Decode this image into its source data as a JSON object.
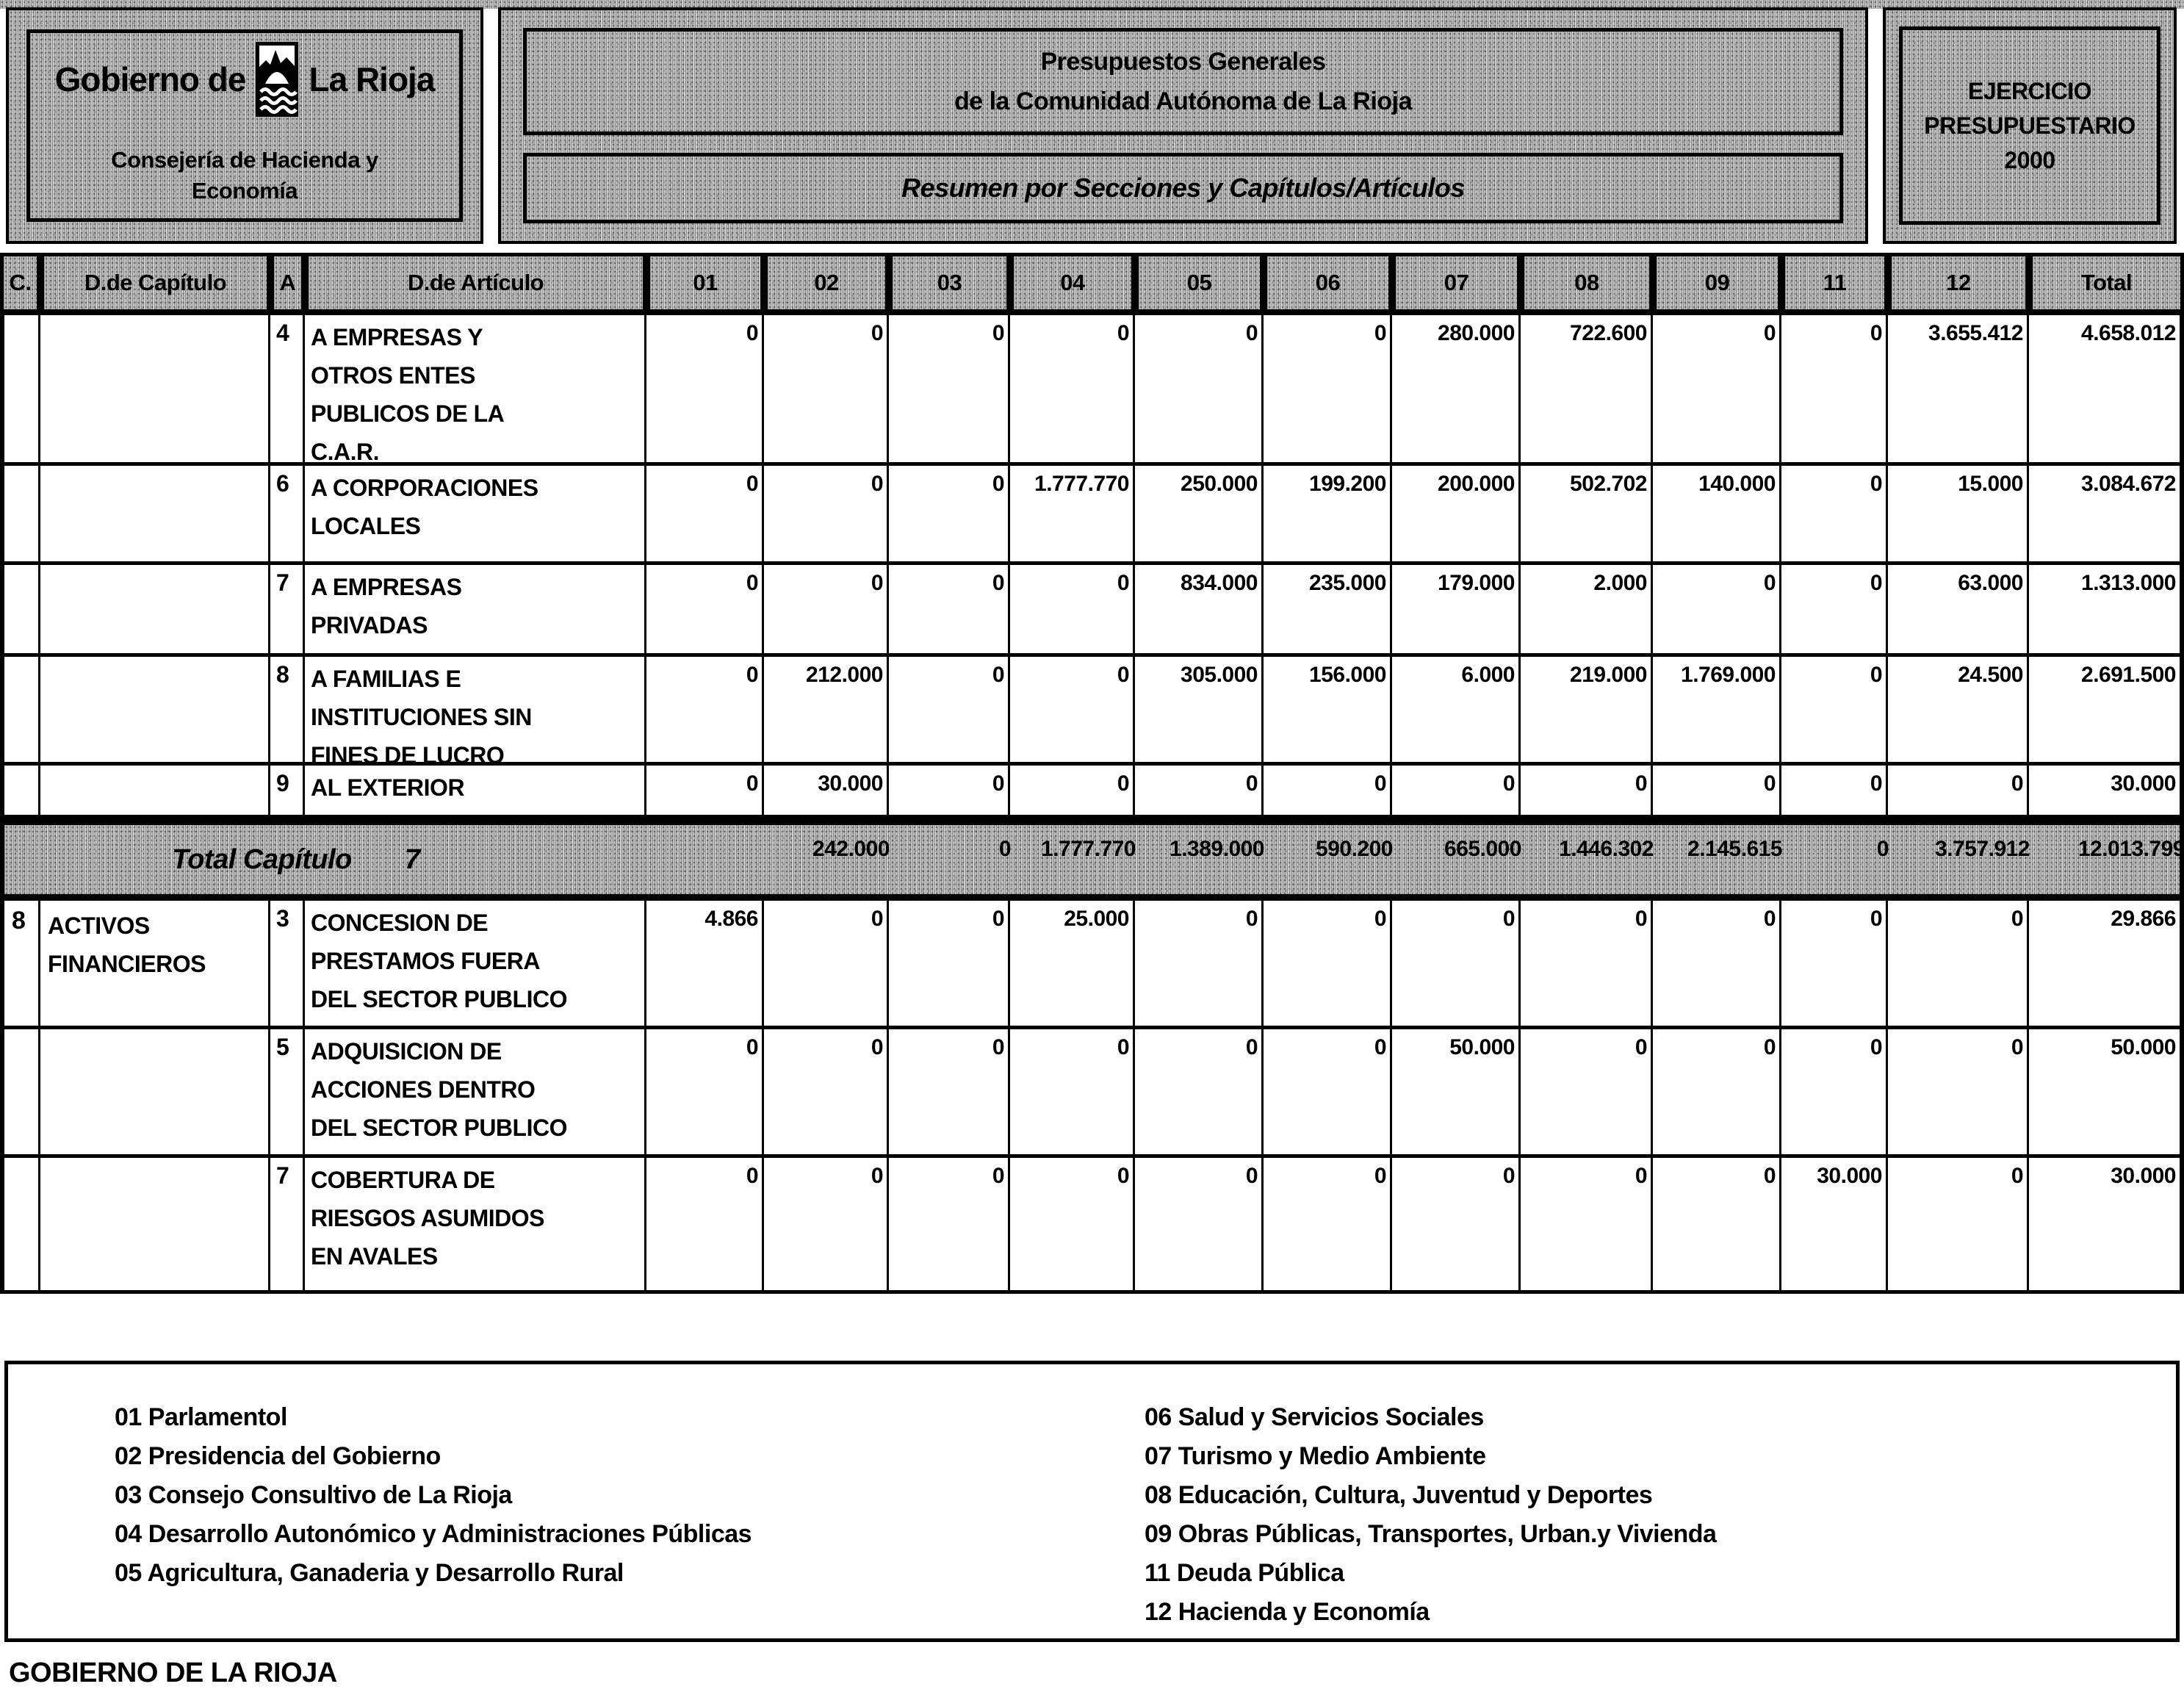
{
  "colors": {
    "ink": "#000000",
    "paper": "#ffffff",
    "halftone_gray": "#bfbfbf"
  },
  "header": {
    "left": {
      "line1_prefix": "Gobierno de",
      "line1_suffix": "La Rioja",
      "line2": "Consejería de Hacienda y",
      "line3": "Economía"
    },
    "center": {
      "title_line1": "Presupuestos Generales",
      "title_line2": "de la Comunidad Autónoma de La Rioja",
      "subtitle": "Resumen por Secciones y Capítulos/Artículos"
    },
    "right": {
      "line1": "EJERCICIO",
      "line2": "PRESUPUESTARIO",
      "line3": "2000"
    }
  },
  "table": {
    "columns": [
      "C.",
      "D.de Capítulo",
      "A",
      "D.de Artículo",
      "01",
      "02",
      "03",
      "04",
      "05",
      "06",
      "07",
      "08",
      "09",
      "11",
      "12",
      "Total"
    ],
    "rows": [
      {
        "c": "",
        "capitulo": "",
        "a": "4",
        "articulo": "A EMPRESAS Y\nOTROS ENTES\nPUBLICOS DE LA\nC.A.R.",
        "values": [
          "0",
          "0",
          "0",
          "0",
          "0",
          "0",
          "280.000",
          "722.600",
          "0",
          "0",
          "3.655.412"
        ],
        "total": "4.658.012"
      },
      {
        "c": "",
        "capitulo": "",
        "a": "6",
        "articulo": "A CORPORACIONES\nLOCALES",
        "values": [
          "0",
          "0",
          "0",
          "1.777.770",
          "250.000",
          "199.200",
          "200.000",
          "502.702",
          "140.000",
          "0",
          "15.000"
        ],
        "total": "3.084.672"
      },
      {
        "c": "",
        "capitulo": "",
        "a": "7",
        "articulo": "A EMPRESAS\nPRIVADAS",
        "values": [
          "0",
          "0",
          "0",
          "0",
          "834.000",
          "235.000",
          "179.000",
          "2.000",
          "0",
          "0",
          "63.000"
        ],
        "total": "1.313.000"
      },
      {
        "c": "",
        "capitulo": "",
        "a": "8",
        "articulo": "A FAMILIAS E\nINSTITUCIONES SIN\nFINES DE LUCRO",
        "values": [
          "0",
          "212.000",
          "0",
          "0",
          "305.000",
          "156.000",
          "6.000",
          "219.000",
          "1.769.000",
          "0",
          "24.500"
        ],
        "total": "2.691.500"
      },
      {
        "c": "",
        "capitulo": "",
        "a": "9",
        "articulo": "AL EXTERIOR",
        "values": [
          "0",
          "30.000",
          "0",
          "0",
          "0",
          "0",
          "0",
          "0",
          "0",
          "0",
          "0"
        ],
        "total": "30.000"
      },
      {
        "c": "8",
        "capitulo": "ACTIVOS\nFINANCIEROS",
        "a": "3",
        "articulo": "CONCESION DE\nPRESTAMOS FUERA\nDEL SECTOR PUBLICO",
        "values": [
          "4.866",
          "0",
          "0",
          "25.000",
          "0",
          "0",
          "0",
          "0",
          "0",
          "0",
          "0"
        ],
        "total": "29.866"
      },
      {
        "c": "",
        "capitulo": "",
        "a": "5",
        "articulo": "ADQUISICION DE\nACCIONES DENTRO\nDEL SECTOR PUBLICO",
        "values": [
          "0",
          "0",
          "0",
          "0",
          "0",
          "0",
          "50.000",
          "0",
          "0",
          "0",
          "0"
        ],
        "total": "50.000"
      },
      {
        "c": "",
        "capitulo": "",
        "a": "7",
        "articulo": "COBERTURA DE\nRIESGOS ASUMIDOS\nEN AVALES",
        "values": [
          "0",
          "0",
          "0",
          "0",
          "0",
          "0",
          "0",
          "0",
          "0",
          "30.000",
          "0"
        ],
        "total": "30.000"
      }
    ],
    "total_row": {
      "label": "Total Capítulo",
      "number": "7",
      "values": [
        "",
        "242.000",
        "0",
        "1.777.770",
        "1.389.000",
        "590.200",
        "665.000",
        "1.446.302",
        "2.145.615",
        "0",
        "3.757.912"
      ],
      "total": "12.013.799"
    }
  },
  "legend": {
    "left": [
      "01 Parlamentol",
      "02 Presidencia del Gobierno",
      "03 Consejo Consultivo de La Rioja",
      "04 Desarrollo Autonómico y Administraciones Públicas",
      "05 Agricultura, Ganaderia y Desarrollo Rural"
    ],
    "right": [
      "06 Salud y Servicios Sociales",
      "07 Turismo y Medio Ambiente",
      "08 Educación, Cultura, Juventud y Deportes",
      "09 Obras Públicas, Transportes, Urban.y Vivienda",
      "11 Deuda Pública",
      "12 Hacienda y Economía"
    ]
  },
  "footer": {
    "text": "GOBIERNO DE LA RIOJA"
  }
}
